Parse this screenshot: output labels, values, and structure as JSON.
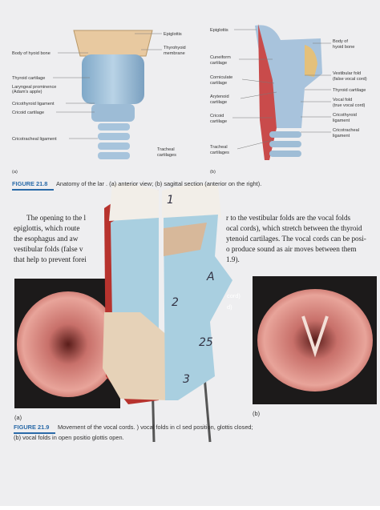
{
  "figure_21_8": {
    "panel_a": {
      "tag": "(a)",
      "labels": [
        "Body of hyoid bone",
        "Thyroid cartilage",
        "Laryngeal prominence",
        "(Adam's apple)",
        "Cricothyroid ligament",
        "Cricoid cartilage",
        "Cricotracheal ligament",
        "Epiglottis",
        "Thyrohyoid",
        "membrane",
        "Tracheal",
        "cartilages"
      ]
    },
    "panel_b": {
      "tag": "(b)",
      "labels": [
        "Epiglottis",
        "Cuneiform",
        "cartilage",
        "Corniculate",
        "cartilage",
        "Arytenoid",
        "cartilage",
        "Cricoid",
        "cartilage",
        "Tracheal",
        "cartilages",
        "Body of",
        "hyoid bone",
        "Vestibular fold",
        "(false vocal cord)",
        "Thyroid cartilage",
        "Vocal fold",
        "(true vocal cord)",
        "Cricothyroid",
        "ligament",
        "Cricotracheal",
        "ligament"
      ]
    },
    "caption": {
      "number": "FIGURE 21.8",
      "text": "Anatomy of the lar    . (a) anterior view; (b) sagittal section (anterior on the right)."
    }
  },
  "paragraph": {
    "left_lines": [
      "The opening to the l",
      "epiglottis, which route",
      "the esophagus and aw",
      "vestibular folds (false v",
      "that help to prevent forei"
    ],
    "right_lines": [
      "r to the vestibular folds are the vocal folds",
      "ocal cords), which stretch between the thyroid",
      "ytenoid cartilages. The vocal cords can be posi-",
      "o produce sound as air moves between them",
      "1.9)."
    ]
  },
  "figure_21_9": {
    "photo_labels": [
      "cord)",
      "d)"
    ],
    "tag_a": "(a)",
    "tag_b": "(b)",
    "caption": {
      "number": "FIGURE 21.9",
      "lines": [
        "Movement of the vocal cords.  ) vocal folds in cl  sed position, glottis closed;",
        "(b) vocal folds in open positio    glottis open."
      ]
    }
  },
  "model_labels": [
    "1",
    "2",
    "A",
    "25",
    "3"
  ]
}
